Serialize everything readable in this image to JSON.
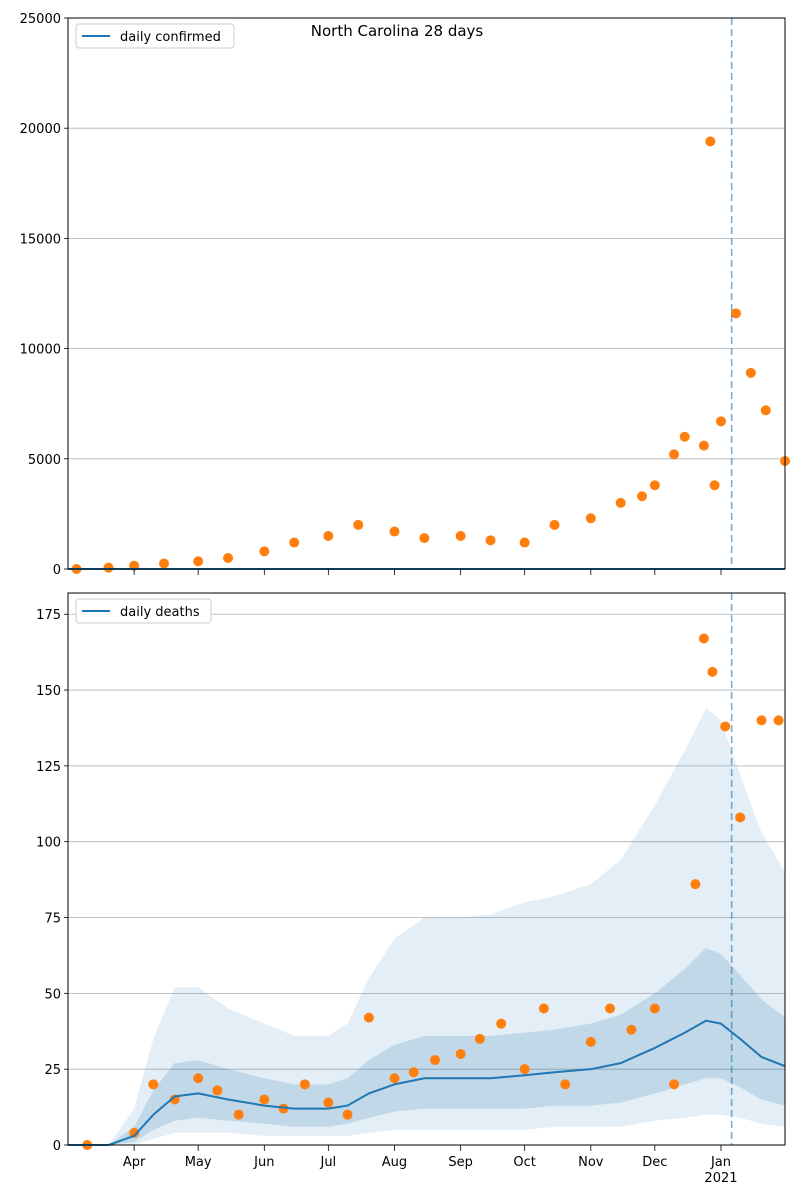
{
  "chart_data": [
    {
      "type": "scatter",
      "title": "North Carolina 28 days",
      "xlabel": "",
      "ylabel": "",
      "ylim": [
        0,
        25000
      ],
      "xlim": [
        "2020-03-01",
        "2021-01-31"
      ],
      "x_ticks": [
        "Apr",
        "May",
        "Jun",
        "Jul",
        "Aug",
        "Sep",
        "Oct",
        "Nov",
        "Dec",
        "Jan"
      ],
      "x_tick_year": "2021",
      "y_ticks": [
        "0",
        "5000",
        "10000",
        "15000",
        "20000",
        "25000"
      ],
      "grid": "horizontal",
      "legend_position": "top-left",
      "forecast_start": "2021-01-06",
      "series": [
        {
          "name": "daily confirmed",
          "kind": "line",
          "color": "#1f77b4",
          "note": "model line lies along y=0"
        }
      ],
      "observed": {
        "color": "#ff7f0e",
        "x": [
          "2020-03-05",
          "2020-03-20",
          "2020-04-01",
          "2020-04-15",
          "2020-05-01",
          "2020-05-15",
          "2020-06-01",
          "2020-06-15",
          "2020-07-01",
          "2020-07-15",
          "2020-08-01",
          "2020-08-15",
          "2020-09-01",
          "2020-09-15",
          "2020-10-01",
          "2020-10-15",
          "2020-11-01",
          "2020-11-15",
          "2020-11-25",
          "2020-12-01",
          "2020-12-10",
          "2020-12-15",
          "2020-12-24",
          "2020-12-27",
          "2020-12-29",
          "2021-01-01",
          "2021-01-08",
          "2021-01-15",
          "2021-01-22",
          "2021-01-31"
        ],
        "y": [
          0,
          60,
          150,
          250,
          350,
          500,
          800,
          1200,
          1500,
          2000,
          1700,
          1400,
          1500,
          1300,
          1200,
          2000,
          2300,
          3000,
          3300,
          3800,
          5200,
          6000,
          5600,
          19400,
          3800,
          6700,
          11600,
          8900,
          7200,
          4900
        ]
      }
    },
    {
      "type": "scatter",
      "title": "",
      "xlabel": "",
      "ylabel": "",
      "ylim": [
        0,
        182
      ],
      "xlim": [
        "2020-03-01",
        "2021-01-31"
      ],
      "x_ticks": [
        "Apr",
        "May",
        "Jun",
        "Jul",
        "Aug",
        "Sep",
        "Oct",
        "Nov",
        "Dec",
        "Jan"
      ],
      "x_tick_year": "2021",
      "y_ticks": [
        "0",
        "25",
        "50",
        "75",
        "100",
        "125",
        "150",
        "175"
      ],
      "grid": "horizontal",
      "legend_position": "top-left",
      "forecast_start": "2021-01-06",
      "series": [
        {
          "name": "daily deaths",
          "kind": "line",
          "color": "#1f77b4",
          "x": [
            "2020-03-01",
            "2020-03-20",
            "2020-04-01",
            "2020-04-10",
            "2020-04-20",
            "2020-05-01",
            "2020-05-15",
            "2020-06-01",
            "2020-06-15",
            "2020-07-01",
            "2020-07-10",
            "2020-07-20",
            "2020-08-01",
            "2020-08-15",
            "2020-09-01",
            "2020-09-15",
            "2020-10-01",
            "2020-10-15",
            "2020-11-01",
            "2020-11-15",
            "2020-12-01",
            "2020-12-15",
            "2020-12-25",
            "2021-01-01",
            "2021-01-10",
            "2021-01-20",
            "2021-01-31"
          ],
          "y": [
            0,
            0,
            3,
            10,
            16,
            17,
            15,
            13,
            12,
            12,
            13,
            17,
            20,
            22,
            22,
            22,
            23,
            24,
            25,
            27,
            32,
            37,
            41,
            40,
            35,
            29,
            26
          ],
          "band_inner_low": [
            0,
            0,
            1,
            5,
            8,
            9,
            8,
            7,
            6,
            6,
            7,
            9,
            11,
            12,
            12,
            12,
            12,
            13,
            13,
            14,
            17,
            20,
            22,
            22,
            19,
            15,
            13
          ],
          "band_inner_high": [
            0,
            0,
            6,
            18,
            27,
            28,
            25,
            22,
            20,
            20,
            22,
            28,
            33,
            36,
            36,
            36,
            37,
            38,
            40,
            43,
            50,
            58,
            65,
            63,
            56,
            48,
            42
          ],
          "band_outer_low": [
            0,
            0,
            0,
            2,
            4,
            4,
            4,
            3,
            3,
            3,
            3,
            4,
            5,
            5,
            5,
            5,
            5,
            6,
            6,
            6,
            8,
            9,
            10,
            10,
            9,
            7,
            6
          ],
          "band_outer_high": [
            0,
            0,
            12,
            35,
            52,
            52,
            45,
            40,
            36,
            36,
            40,
            55,
            68,
            75,
            75,
            76,
            80,
            82,
            86,
            94,
            112,
            130,
            144,
            140,
            122,
            103,
            90
          ]
        }
      ],
      "observed": {
        "color": "#ff7f0e",
        "x": [
          "2020-03-10",
          "2020-04-01",
          "2020-04-10",
          "2020-04-20",
          "2020-05-01",
          "2020-05-10",
          "2020-05-20",
          "2020-06-01",
          "2020-06-10",
          "2020-06-20",
          "2020-07-01",
          "2020-07-10",
          "2020-07-20",
          "2020-08-01",
          "2020-08-10",
          "2020-08-20",
          "2020-09-01",
          "2020-09-10",
          "2020-09-20",
          "2020-10-01",
          "2020-10-10",
          "2020-10-20",
          "2020-11-01",
          "2020-11-10",
          "2020-11-20",
          "2020-12-01",
          "2020-12-10",
          "2020-12-20",
          "2020-12-24",
          "2020-12-28",
          "2021-01-03",
          "2021-01-10",
          "2021-01-20",
          "2021-01-28"
        ],
        "y": [
          0,
          4,
          20,
          15,
          22,
          18,
          10,
          15,
          12,
          20,
          14,
          10,
          42,
          22,
          24,
          28,
          30,
          35,
          40,
          25,
          45,
          20,
          34,
          45,
          38,
          45,
          20,
          86,
          167,
          156,
          138,
          108,
          140,
          140
        ]
      }
    }
  ]
}
